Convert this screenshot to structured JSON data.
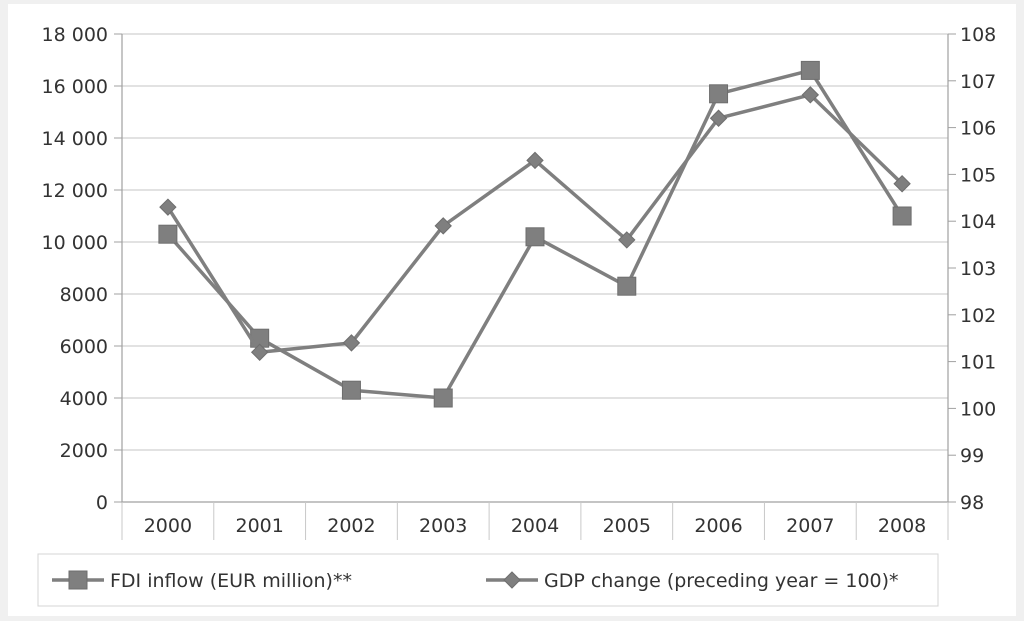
{
  "chart_data": {
    "type": "line",
    "title": "",
    "xlabel": "",
    "ylabel_left": "",
    "ylabel_right": "",
    "categories": [
      "2000",
      "2001",
      "2002",
      "2003",
      "2004",
      "2005",
      "2006",
      "2007",
      "2008"
    ],
    "y_left": {
      "range": [
        0,
        18000
      ],
      "ticks": [
        0,
        2000,
        4000,
        6000,
        8000,
        10000,
        12000,
        14000,
        16000,
        18000
      ],
      "tick_labels": [
        "0",
        "2000",
        "4000",
        "6000",
        "8000",
        "10 000",
        "12 000",
        "14 000",
        "16 000",
        "18 000"
      ]
    },
    "y_right": {
      "range": [
        98,
        108
      ],
      "ticks": [
        98,
        99,
        100,
        101,
        102,
        103,
        104,
        105,
        106,
        107,
        108
      ],
      "tick_labels": [
        "98",
        "99",
        "100",
        "101",
        "102",
        "103",
        "104",
        "105",
        "106",
        "107",
        "108"
      ]
    },
    "grid": true,
    "legend_position": "bottom",
    "series": [
      {
        "name": "FDI inflow (EUR million)**",
        "axis": "left",
        "marker": "square",
        "color": "#7f7f7f",
        "values": [
          10300,
          6300,
          4300,
          4000,
          10200,
          8300,
          15700,
          16600,
          11000
        ]
      },
      {
        "name": "GDP change (preceding year = 100)*",
        "axis": "right",
        "marker": "diamond",
        "color": "#7f7f7f",
        "values": [
          104.3,
          101.2,
          101.4,
          103.9,
          105.3,
          103.6,
          106.2,
          106.7,
          104.8
        ]
      }
    ]
  }
}
